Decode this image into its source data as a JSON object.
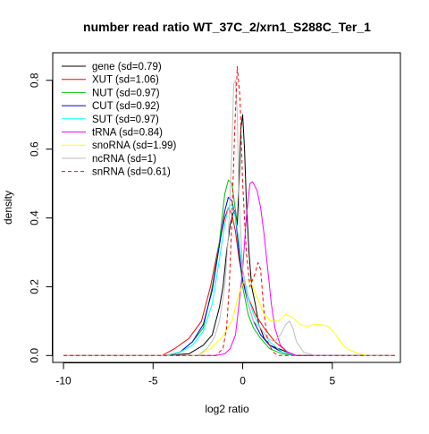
{
  "chart_data": {
    "type": "line",
    "title": "number read ratio WT_37C_2/xrn1_S288C_Ter_1",
    "xlabel": "log2 ratio",
    "ylabel": "density",
    "xlim": [
      -10.6,
      8.8
    ],
    "ylim": [
      -0.02,
      0.88
    ],
    "x_ticks": [
      -10,
      -5,
      0,
      5
    ],
    "x_tick_labels": [
      "-10",
      "-5",
      "0",
      "5"
    ],
    "y_ticks": [
      0.0,
      0.2,
      0.4,
      0.6,
      0.8
    ],
    "y_tick_labels": [
      "0.0",
      "0.2",
      "0.4",
      "0.6",
      "0.8"
    ],
    "legend_position": "top-left",
    "series": [
      {
        "name": "gene (sd=0.79)",
        "color": "#000000",
        "dash": "solid",
        "points": [
          [
            -10,
            0
          ],
          [
            -4.5,
            0
          ],
          [
            -3,
            0.005
          ],
          [
            -2.2,
            0.03
          ],
          [
            -1.7,
            0.06
          ],
          [
            -1.5,
            0.1
          ],
          [
            -1.3,
            0.14
          ],
          [
            -1.1,
            0.2
          ],
          [
            -0.9,
            0.3
          ],
          [
            -0.7,
            0.38
          ],
          [
            -0.5,
            0.42
          ],
          [
            -0.4,
            0.42
          ],
          [
            -0.3,
            0.38
          ],
          [
            -0.2,
            0.5
          ],
          [
            -0.1,
            0.66
          ],
          [
            0,
            0.7
          ],
          [
            0.1,
            0.6
          ],
          [
            0.2,
            0.45
          ],
          [
            0.35,
            0.3
          ],
          [
            0.5,
            0.2
          ],
          [
            0.7,
            0.15
          ],
          [
            0.9,
            0.09
          ],
          [
            1.2,
            0.05
          ],
          [
            1.5,
            0.03
          ],
          [
            2,
            0.02
          ],
          [
            2.5,
            0.01
          ],
          [
            3,
            0
          ],
          [
            8.5,
            0
          ]
        ]
      },
      {
        "name": "XUT (sd=1.06)",
        "color": "#ff0000",
        "dash": "solid",
        "points": [
          [
            -10,
            0
          ],
          [
            -4.5,
            0
          ],
          [
            -3.8,
            0.02
          ],
          [
            -3,
            0.05
          ],
          [
            -2.3,
            0.1
          ],
          [
            -1.8,
            0.2
          ],
          [
            -1.3,
            0.33
          ],
          [
            -1,
            0.4
          ],
          [
            -0.8,
            0.43
          ],
          [
            -0.6,
            0.41
          ],
          [
            -0.4,
            0.36
          ],
          [
            -0.2,
            0.28
          ],
          [
            0,
            0.22
          ],
          [
            0.3,
            0.17
          ],
          [
            0.7,
            0.12
          ],
          [
            1.2,
            0.08
          ],
          [
            1.8,
            0.04
          ],
          [
            2.5,
            0.01
          ],
          [
            3,
            0
          ],
          [
            8.5,
            0
          ]
        ]
      },
      {
        "name": "NUT (sd=0.97)",
        "color": "#00c000",
        "dash": "solid",
        "points": [
          [
            -10,
            0
          ],
          [
            -4.3,
            0
          ],
          [
            -3.5,
            0.01
          ],
          [
            -2.8,
            0.04
          ],
          [
            -2.2,
            0.08
          ],
          [
            -1.7,
            0.2
          ],
          [
            -1.3,
            0.33
          ],
          [
            -1,
            0.47
          ],
          [
            -0.8,
            0.51
          ],
          [
            -0.6,
            0.5
          ],
          [
            -0.4,
            0.42
          ],
          [
            -0.2,
            0.3
          ],
          [
            0,
            0.2
          ],
          [
            0.3,
            0.12
          ],
          [
            0.6,
            0.08
          ],
          [
            1,
            0.05
          ],
          [
            1.5,
            0.02
          ],
          [
            2.2,
            0.005
          ],
          [
            3,
            0
          ],
          [
            8.5,
            0
          ]
        ]
      },
      {
        "name": "CUT (sd=0.92)",
        "color": "#0000cc",
        "dash": "solid",
        "points": [
          [
            -10,
            0
          ],
          [
            -4.3,
            0
          ],
          [
            -3.5,
            0.01
          ],
          [
            -2.8,
            0.04
          ],
          [
            -2.2,
            0.09
          ],
          [
            -1.7,
            0.19
          ],
          [
            -1.3,
            0.32
          ],
          [
            -1,
            0.42
          ],
          [
            -0.8,
            0.46
          ],
          [
            -0.6,
            0.45
          ],
          [
            -0.4,
            0.4
          ],
          [
            -0.2,
            0.3
          ],
          [
            0,
            0.22
          ],
          [
            0.3,
            0.15
          ],
          [
            0.6,
            0.1
          ],
          [
            1,
            0.06
          ],
          [
            1.5,
            0.03
          ],
          [
            2.2,
            0.01
          ],
          [
            3,
            0
          ],
          [
            8.5,
            0
          ]
        ]
      },
      {
        "name": "SUT (sd=0.97)",
        "color": "#00ffff",
        "dash": "solid",
        "points": [
          [
            -10,
            0
          ],
          [
            -4.3,
            0
          ],
          [
            -3.5,
            0.01
          ],
          [
            -2.8,
            0.03
          ],
          [
            -2.2,
            0.07
          ],
          [
            -1.7,
            0.15
          ],
          [
            -1.3,
            0.28
          ],
          [
            -1,
            0.38
          ],
          [
            -0.8,
            0.43
          ],
          [
            -0.6,
            0.44
          ],
          [
            -0.4,
            0.4
          ],
          [
            -0.2,
            0.33
          ],
          [
            0,
            0.25
          ],
          [
            0.3,
            0.17
          ],
          [
            0.6,
            0.12
          ],
          [
            1,
            0.08
          ],
          [
            1.5,
            0.04
          ],
          [
            2.2,
            0.01
          ],
          [
            3,
            0
          ],
          [
            8.5,
            0
          ]
        ]
      },
      {
        "name": "tRNA (sd=0.84)",
        "color": "#ff00ff",
        "dash": "solid",
        "points": [
          [
            -10,
            0
          ],
          [
            -1.5,
            0
          ],
          [
            -1,
            0.005
          ],
          [
            -0.7,
            0.02
          ],
          [
            -0.4,
            0.06
          ],
          [
            -0.2,
            0.15
          ],
          [
            0,
            0.25
          ],
          [
            0.2,
            0.4
          ],
          [
            0.4,
            0.5
          ],
          [
            0.55,
            0.505
          ],
          [
            0.8,
            0.48
          ],
          [
            1,
            0.43
          ],
          [
            1.2,
            0.35
          ],
          [
            1.4,
            0.25
          ],
          [
            1.6,
            0.15
          ],
          [
            1.8,
            0.08
          ],
          [
            2.1,
            0.03
          ],
          [
            2.5,
            0.01
          ],
          [
            3,
            0
          ],
          [
            8.5,
            0
          ]
        ]
      },
      {
        "name": "snoRNA (sd=1.99)",
        "color": "#ffff00",
        "dash": "solid",
        "points": [
          [
            -10,
            0
          ],
          [
            -2.5,
            0
          ],
          [
            -1.8,
            0.02
          ],
          [
            -1.2,
            0.05
          ],
          [
            -0.6,
            0.1
          ],
          [
            -0.2,
            0.18
          ],
          [
            0.1,
            0.22
          ],
          [
            0.4,
            0.22
          ],
          [
            0.8,
            0.17
          ],
          [
            1.2,
            0.12
          ],
          [
            1.6,
            0.1
          ],
          [
            2,
            0.1
          ],
          [
            2.4,
            0.12
          ],
          [
            2.8,
            0.11
          ],
          [
            3.2,
            0.09
          ],
          [
            3.6,
            0.085
          ],
          [
            4,
            0.09
          ],
          [
            4.4,
            0.09
          ],
          [
            4.8,
            0.085
          ],
          [
            5.2,
            0.06
          ],
          [
            5.6,
            0.03
          ],
          [
            6,
            0.015
          ],
          [
            6.5,
            0.005
          ],
          [
            7,
            0
          ],
          [
            8.5,
            0
          ]
        ]
      },
      {
        "name": "ncRNA (sd=1)",
        "color": "#bebebe",
        "dash": "solid",
        "points": [
          [
            -10,
            0
          ],
          [
            -2.5,
            0
          ],
          [
            -2,
            0.02
          ],
          [
            -1.6,
            0.05
          ],
          [
            -1.3,
            0.1
          ],
          [
            -1,
            0.2
          ],
          [
            -0.8,
            0.35
          ],
          [
            -0.6,
            0.6
          ],
          [
            -0.5,
            0.79
          ],
          [
            -0.4,
            0.8
          ],
          [
            -0.3,
            0.7
          ],
          [
            -0.2,
            0.45
          ],
          [
            0,
            0.25
          ],
          [
            0.3,
            0.15
          ],
          [
            0.6,
            0.1
          ],
          [
            1,
            0.08
          ],
          [
            1.4,
            0.05
          ],
          [
            1.8,
            0.04
          ],
          [
            2.1,
            0.06
          ],
          [
            2.4,
            0.09
          ],
          [
            2.6,
            0.1
          ],
          [
            2.8,
            0.08
          ],
          [
            3,
            0.04
          ],
          [
            3.4,
            0.01
          ],
          [
            4,
            0
          ],
          [
            8.5,
            0
          ]
        ]
      },
      {
        "name": "snRNA (sd=0.61)",
        "color": "#ff0000",
        "dash": "dashed",
        "points": [
          [
            -10,
            0
          ],
          [
            -1.5,
            0
          ],
          [
            -1.1,
            0.02
          ],
          [
            -0.9,
            0.08
          ],
          [
            -0.75,
            0.2
          ],
          [
            -0.6,
            0.4
          ],
          [
            -0.45,
            0.65
          ],
          [
            -0.3,
            0.84
          ],
          [
            -0.15,
            0.75
          ],
          [
            0,
            0.5
          ],
          [
            0.2,
            0.3
          ],
          [
            0.4,
            0.2
          ],
          [
            0.55,
            0.22
          ],
          [
            0.7,
            0.24
          ],
          [
            0.85,
            0.27
          ],
          [
            1,
            0.25
          ],
          [
            1.2,
            0.12
          ],
          [
            1.4,
            0.04
          ],
          [
            1.7,
            0.01
          ],
          [
            2,
            0
          ],
          [
            8.5,
            0
          ]
        ]
      }
    ]
  }
}
